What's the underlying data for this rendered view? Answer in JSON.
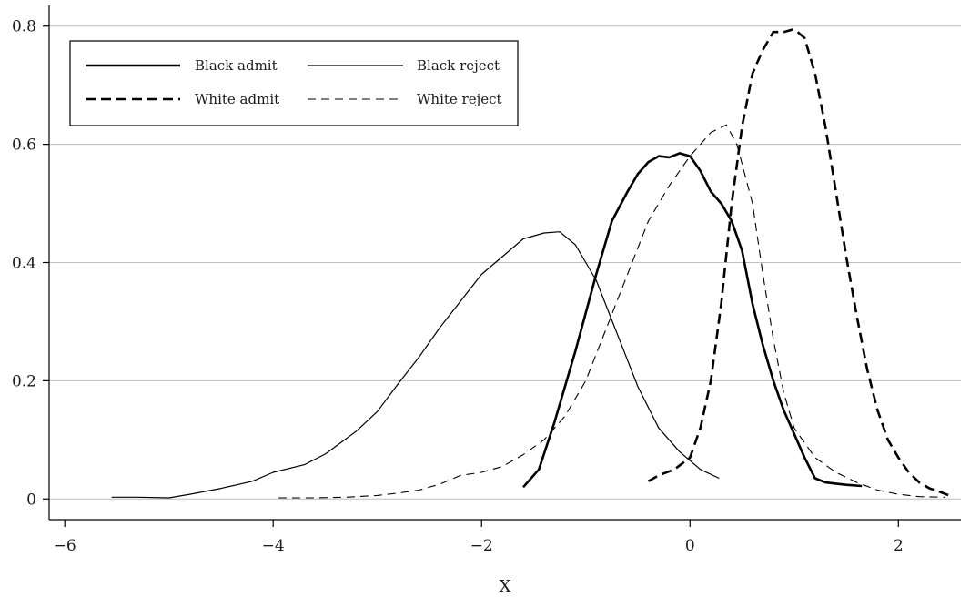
{
  "chart_data": {
    "type": "line",
    "title": "",
    "xlabel": "X",
    "ylabel": "",
    "xlim": [
      -6.15,
      2.6
    ],
    "ylim": [
      -0.035,
      0.835
    ],
    "xticks": [
      -6,
      -4,
      -2,
      0,
      2
    ],
    "xtick_labels": [
      "−6",
      "−4",
      "−2",
      "0",
      "2"
    ],
    "yticks": [
      0,
      0.2,
      0.4,
      0.6,
      0.8
    ],
    "ytick_labels": [
      "0",
      "0.2",
      "0.4",
      "0.6",
      "0.8"
    ],
    "grid": "horizontal",
    "legend_position": "top-left",
    "series": [
      {
        "name": "Black admit",
        "style": "solid-thick",
        "x": [
          -1.6,
          -1.45,
          -1.3,
          -1.1,
          -0.9,
          -0.75,
          -0.6,
          -0.5,
          -0.4,
          -0.3,
          -0.2,
          -0.1,
          0.0,
          0.1,
          0.2,
          0.3,
          0.4,
          0.5,
          0.6,
          0.7,
          0.8,
          0.9,
          1.0,
          1.1,
          1.2,
          1.3,
          1.4,
          1.5,
          1.65
        ],
        "y": [
          0.02,
          0.05,
          0.13,
          0.25,
          0.38,
          0.47,
          0.52,
          0.55,
          0.57,
          0.58,
          0.578,
          0.585,
          0.58,
          0.555,
          0.52,
          0.5,
          0.47,
          0.42,
          0.33,
          0.26,
          0.2,
          0.15,
          0.11,
          0.07,
          0.035,
          0.028,
          0.026,
          0.024,
          0.022
        ]
      },
      {
        "name": "Black reject",
        "style": "solid-thin",
        "x": [
          -5.55,
          -5.3,
          -5.0,
          -4.8,
          -4.5,
          -4.2,
          -4.0,
          -3.7,
          -3.5,
          -3.2,
          -3.0,
          -2.8,
          -2.6,
          -2.4,
          -2.2,
          -2.0,
          -1.8,
          -1.6,
          -1.4,
          -1.25,
          -1.1,
          -0.9,
          -0.7,
          -0.5,
          -0.3,
          -0.1,
          0.1,
          0.28
        ],
        "y": [
          0.003,
          0.003,
          0.002,
          0.008,
          0.018,
          0.03,
          0.045,
          0.058,
          0.076,
          0.115,
          0.148,
          0.195,
          0.24,
          0.29,
          0.335,
          0.38,
          0.41,
          0.44,
          0.45,
          0.452,
          0.43,
          0.37,
          0.28,
          0.19,
          0.12,
          0.08,
          0.05,
          0.035
        ]
      },
      {
        "name": "White admit",
        "style": "dashed-thick",
        "x": [
          -0.4,
          -0.3,
          -0.15,
          0.0,
          0.1,
          0.2,
          0.3,
          0.4,
          0.5,
          0.6,
          0.7,
          0.8,
          0.9,
          1.0,
          1.1,
          1.2,
          1.3,
          1.4,
          1.5,
          1.6,
          1.7,
          1.8,
          1.9,
          2.0,
          2.1,
          2.2,
          2.3,
          2.4,
          2.5
        ],
        "y": [
          0.03,
          0.04,
          0.05,
          0.07,
          0.12,
          0.2,
          0.33,
          0.5,
          0.63,
          0.72,
          0.76,
          0.79,
          0.79,
          0.795,
          0.78,
          0.72,
          0.63,
          0.52,
          0.41,
          0.31,
          0.22,
          0.15,
          0.1,
          0.07,
          0.045,
          0.028,
          0.018,
          0.012,
          0.005
        ]
      },
      {
        "name": "White reject",
        "style": "dashed-thin",
        "x": [
          -3.95,
          -3.6,
          -3.3,
          -3.0,
          -2.8,
          -2.6,
          -2.4,
          -2.2,
          -2.0,
          -1.8,
          -1.6,
          -1.4,
          -1.2,
          -1.0,
          -0.8,
          -0.6,
          -0.4,
          -0.2,
          0.0,
          0.2,
          0.35,
          0.45,
          0.6,
          0.7,
          0.8,
          0.9,
          1.0,
          1.2,
          1.4,
          1.6,
          1.8,
          2.0,
          2.2,
          2.45
        ],
        "y": [
          0.002,
          0.002,
          0.003,
          0.006,
          0.01,
          0.015,
          0.025,
          0.04,
          0.045,
          0.055,
          0.075,
          0.1,
          0.14,
          0.2,
          0.29,
          0.38,
          0.47,
          0.53,
          0.58,
          0.62,
          0.633,
          0.6,
          0.5,
          0.38,
          0.27,
          0.18,
          0.12,
          0.07,
          0.045,
          0.028,
          0.015,
          0.008,
          0.004,
          0.003
        ]
      }
    ]
  }
}
